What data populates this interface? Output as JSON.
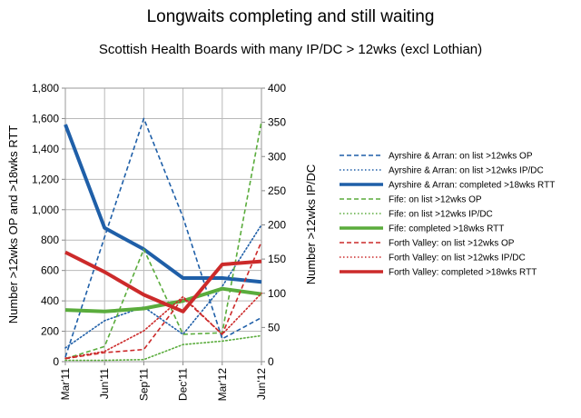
{
  "title": "Longwaits completing and still waiting",
  "subtitle": "Scottish Health Boards with many IP/DC > 12wks (excl Lothian)",
  "chart_data": {
    "type": "line",
    "categories": [
      "Mar'11",
      "Jun'11",
      "Sep'11",
      "Dec'11",
      "Mar'12",
      "Jun'12"
    ],
    "ylabel": "Number >12wks OP and >18wks RTT",
    "y2label": "Number >12wks IP/DC",
    "ylim": [
      0,
      1800
    ],
    "y2lim": [
      0,
      400
    ],
    "yticks": [
      "0",
      "200",
      "400",
      "600",
      "800",
      "1,000",
      "1,200",
      "1,400",
      "1,600",
      "1,800"
    ],
    "y2ticks": [
      "0",
      "50",
      "100",
      "150",
      "200",
      "250",
      "300",
      "350",
      "400"
    ],
    "grid": true,
    "legend": "right",
    "series": [
      {
        "name": "Ayrshire & Arran: on list >12wks OP",
        "color": "#1f5fa8",
        "style": "dashed",
        "axis": "left",
        "values": [
          30,
          820,
          1600,
          950,
          150,
          290
        ]
      },
      {
        "name": "Ayrshire & Arran: on list >12wks IP/DC",
        "color": "#1f5fa8",
        "style": "dotted",
        "axis": "right",
        "values": [
          20,
          60,
          80,
          40,
          110,
          200
        ]
      },
      {
        "name": "Ayrshire & Arran: completed >18wks RTT",
        "color": "#1f5fa8",
        "style": "solid",
        "axis": "left",
        "values": [
          1560,
          880,
          740,
          550,
          550,
          525
        ]
      },
      {
        "name": "Fife: on list >12wks OP",
        "color": "#5aac3c",
        "style": "dashed",
        "axis": "left",
        "values": [
          20,
          100,
          740,
          180,
          190,
          1580
        ]
      },
      {
        "name": "Fife: on list >12wks IP/DC",
        "color": "#5aac3c",
        "style": "dotted",
        "axis": "right",
        "values": [
          2,
          2,
          3,
          25,
          30,
          38
        ]
      },
      {
        "name": "Fife: completed >18wks RTT",
        "color": "#5aac3c",
        "style": "solid",
        "axis": "left",
        "values": [
          340,
          330,
          350,
          400,
          480,
          445
        ]
      },
      {
        "name": "Forth Valley: on list >12wks OP",
        "color": "#cc2a2a",
        "style": "dashed",
        "axis": "left",
        "values": [
          20,
          60,
          80,
          420,
          180,
          790
        ]
      },
      {
        "name": "Forth Valley: on list >12wks IP/DC",
        "color": "#cc2a2a",
        "style": "dotted",
        "axis": "right",
        "values": [
          5,
          15,
          45,
          95,
          40,
          100
        ]
      },
      {
        "name": "Forth Valley: completed >18wks RTT",
        "color": "#cc2a2a",
        "style": "solid",
        "axis": "left",
        "values": [
          720,
          590,
          440,
          330,
          640,
          660
        ]
      }
    ]
  }
}
